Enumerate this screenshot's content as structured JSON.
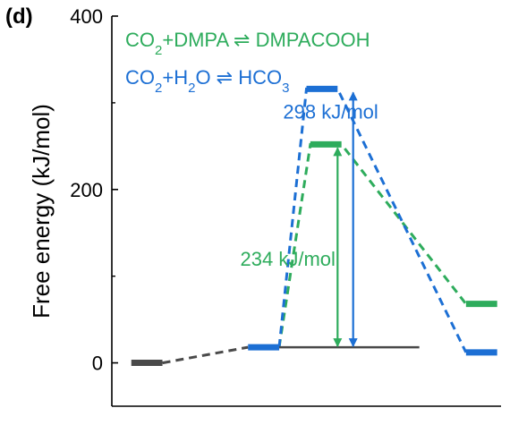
{
  "chart_data": {
    "type": "line",
    "panel_label": "(d)",
    "ylabel": "Free energy (kJ/mol)",
    "ylim": [
      -50,
      400
    ],
    "yticks": [
      0,
      200,
      400
    ],
    "ytick_labels": [
      "0",
      "200",
      "400"
    ],
    "xlim": [
      0,
      5
    ],
    "grid": false,
    "legend_position": "top-left",
    "colors": {
      "dmpa": "#2eac5c",
      "h2o": "#1c6fd4",
      "shared": "#4a4a4a",
      "axis": "#000000"
    },
    "levels": [
      {
        "x": [
          0.25,
          0.65
        ],
        "y": 0,
        "color": "shared"
      },
      {
        "x": [
          1.75,
          2.15
        ],
        "y": 18,
        "color": "h2o"
      },
      {
        "x": [
          2.55,
          2.95
        ],
        "y": 252,
        "color": "dmpa"
      },
      {
        "x": [
          2.5,
          2.9
        ],
        "y": 316,
        "color": "h2o"
      },
      {
        "x": [
          4.55,
          4.95
        ],
        "y": 68,
        "color": "dmpa"
      },
      {
        "x": [
          4.55,
          4.95
        ],
        "y": 12,
        "color": "h2o"
      }
    ],
    "series": [
      {
        "name": "CO2+DMPA ⇌ DMPACOOH",
        "color": "dmpa",
        "points": [
          [
            2.15,
            18
          ],
          [
            2.55,
            252
          ],
          [
            2.95,
            252
          ],
          [
            4.55,
            68
          ]
        ]
      },
      {
        "name": "CO2+H2O ⇌ HCO3",
        "color": "h2o",
        "points": [
          [
            2.15,
            18
          ],
          [
            2.5,
            316
          ],
          [
            2.9,
            316
          ],
          [
            4.55,
            12
          ]
        ]
      },
      {
        "name": "",
        "color": "shared",
        "points": [
          [
            0.65,
            0
          ],
          [
            1.75,
            18
          ]
        ]
      }
    ],
    "baseline": {
      "x": [
        2.15,
        3.95
      ],
      "y": 18,
      "color": "shared"
    },
    "arrows": [
      {
        "x": 2.9,
        "y_from": 18,
        "y_to": 252,
        "color": "dmpa"
      },
      {
        "x": 3.1,
        "y_from": 18,
        "y_to": 316,
        "color": "h2o"
      }
    ],
    "annotations": [
      {
        "text": "298 kJ/mol",
        "x": 2.2,
        "y": 282,
        "color": "h2o"
      },
      {
        "text": "234 kJ/mol",
        "x": 1.65,
        "y": 112,
        "color": "dmpa"
      }
    ],
    "legend": [
      {
        "color": "dmpa",
        "parts": [
          [
            "CO",
            ""
          ],
          [
            "2",
            "sub"
          ],
          [
            "+DMPA ⇌ DMPACOOH",
            ""
          ]
        ]
      },
      {
        "color": "h2o",
        "parts": [
          [
            "CO",
            ""
          ],
          [
            "2",
            "sub"
          ],
          [
            "+H",
            ""
          ],
          [
            "2",
            "sub"
          ],
          [
            "O ⇌ HCO",
            ""
          ],
          [
            "3",
            "sub"
          ]
        ]
      }
    ]
  }
}
